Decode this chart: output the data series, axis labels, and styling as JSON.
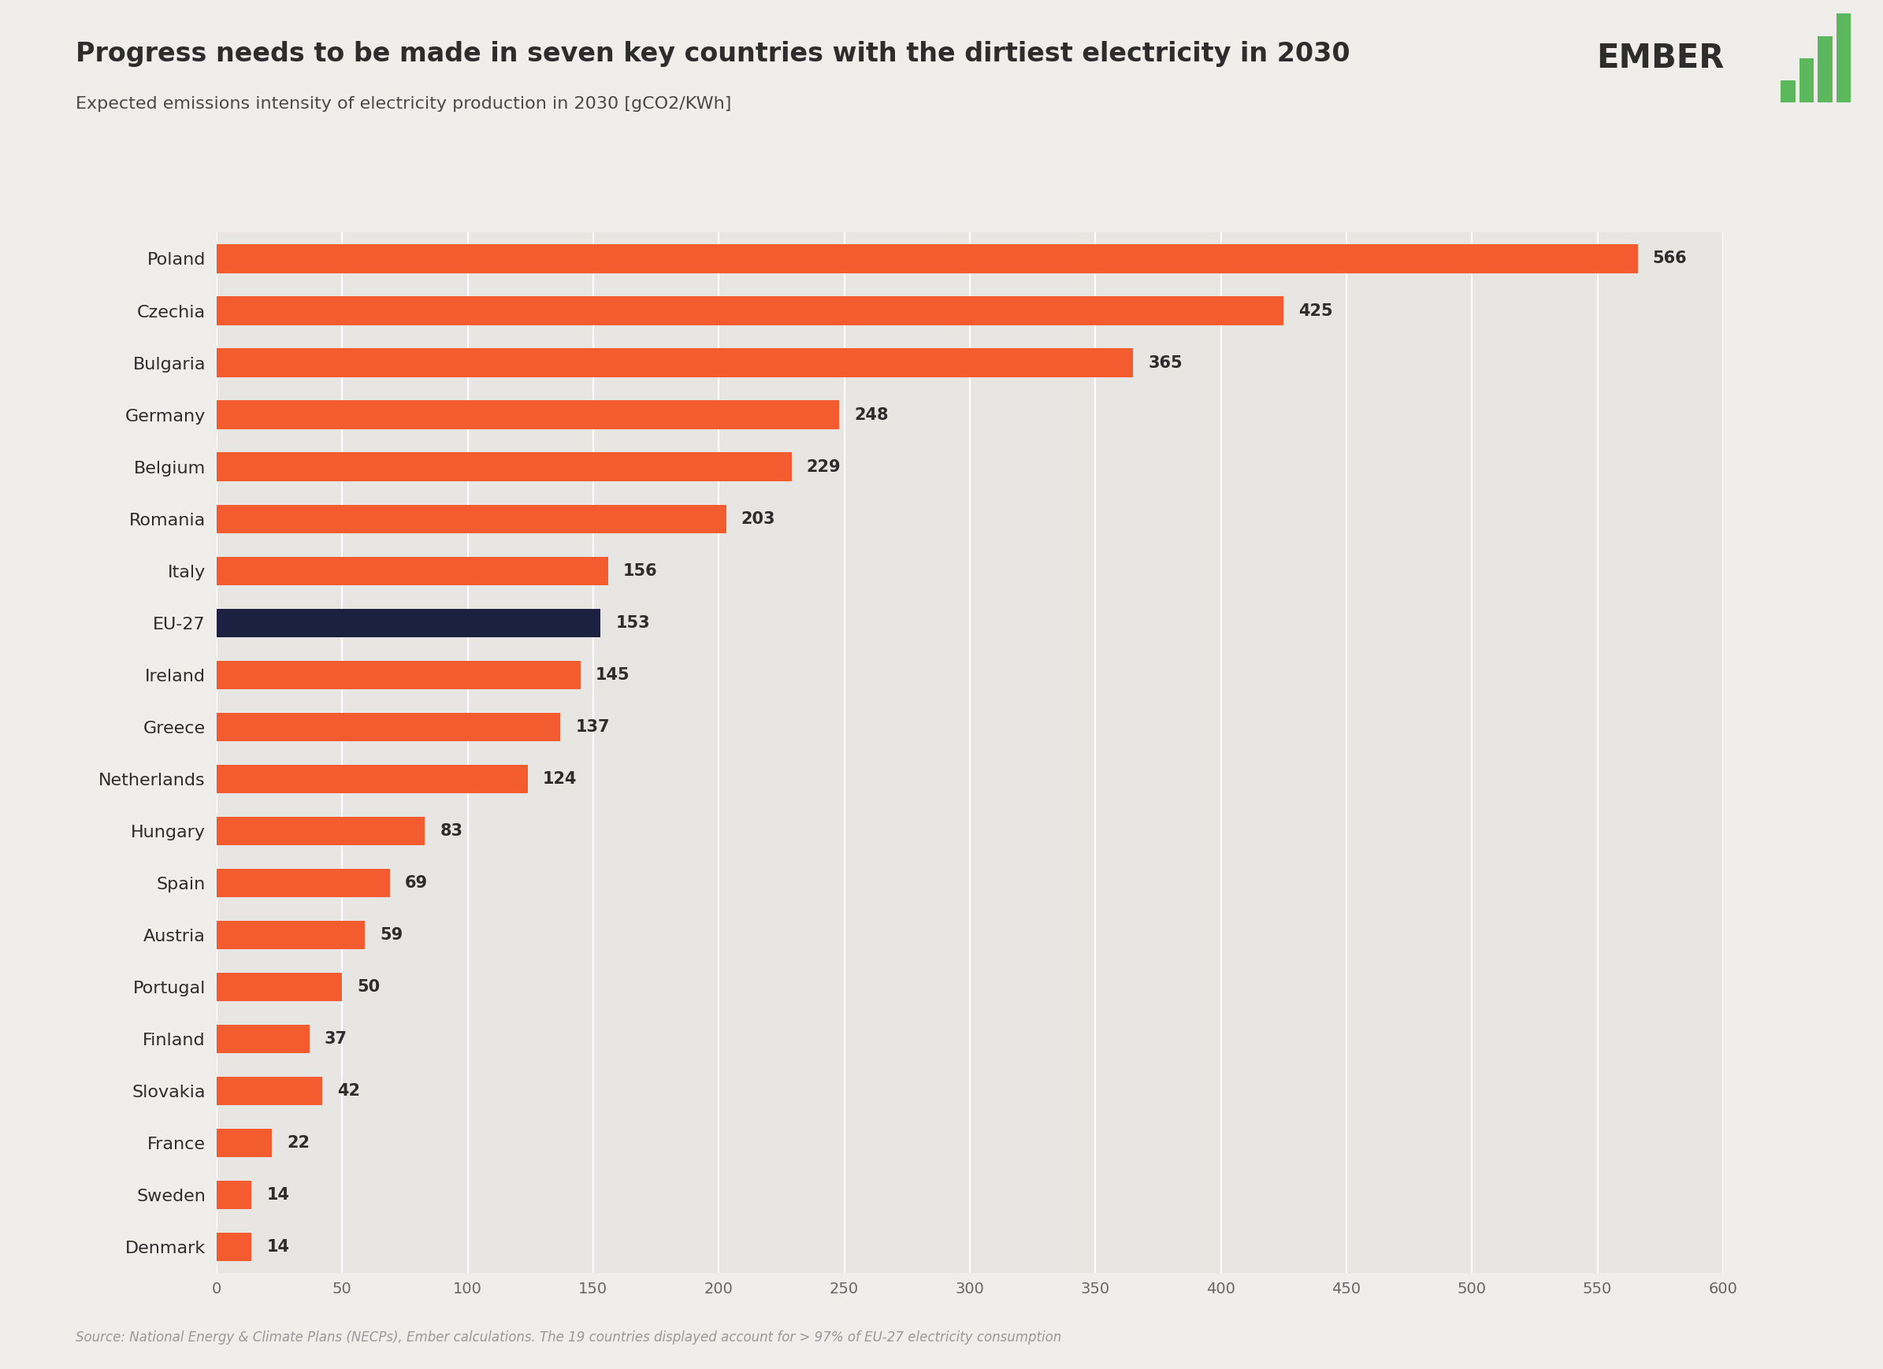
{
  "title": "Progress needs to be made in seven key countries with the dirtiest electricity in 2030",
  "subtitle": "Expected emissions intensity of electricity production in 2030 [gCO2/KWh]",
  "source": "Source: National Energy & Climate Plans (NECPs), Ember calculations. The 19 countries displayed account for > 97% of EU-27 electricity consumption",
  "countries": [
    "Poland",
    "Czechia",
    "Bulgaria",
    "Germany",
    "Belgium",
    "Romania",
    "Italy",
    "EU-27",
    "Ireland",
    "Greece",
    "Netherlands",
    "Hungary",
    "Spain",
    "Austria",
    "Portugal",
    "Finland",
    "Slovakia",
    "France",
    "Sweden",
    "Denmark"
  ],
  "values": [
    566,
    425,
    365,
    248,
    229,
    203,
    156,
    153,
    145,
    137,
    124,
    83,
    69,
    59,
    50,
    37,
    42,
    22,
    14,
    14
  ],
  "bar_colors": [
    "#f25c2e",
    "#f25c2e",
    "#f25c2e",
    "#f25c2e",
    "#f25c2e",
    "#f25c2e",
    "#f25c2e",
    "#1c2141",
    "#f25c2e",
    "#f25c2e",
    "#f25c2e",
    "#f25c2e",
    "#f25c2e",
    "#f25c2e",
    "#f25c2e",
    "#f25c2e",
    "#f25c2e",
    "#f25c2e",
    "#f25c2e",
    "#f25c2e"
  ],
  "background_color": "#f0eeeb",
  "plot_bg_color": "#e8e6e2",
  "title_color": "#2d2d2d",
  "subtitle_color": "#4a4a4a",
  "source_color": "#999999",
  "bar_label_color": "#2d2d2d",
  "grid_color": "#ffffff",
  "xlim": [
    0,
    600
  ],
  "xticks": [
    0,
    50,
    100,
    150,
    200,
    250,
    300,
    350,
    400,
    450,
    500,
    550,
    600
  ],
  "ember_text_color": "#2d2d2d",
  "ember_green": "#5cb85c"
}
